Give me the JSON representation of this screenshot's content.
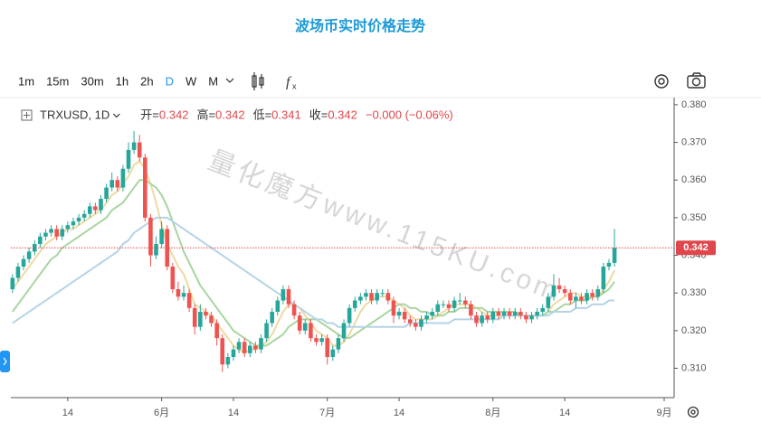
{
  "header": {
    "title": "波场币实时价格走势"
  },
  "toolbar": {
    "intervals": [
      "1m",
      "15m",
      "30m",
      "1h",
      "2h",
      "D",
      "W",
      "M"
    ]
  },
  "legend": {
    "symbol": "TRXUSD, 1D",
    "fields": [
      {
        "label": "开=",
        "value": 0.342
      },
      {
        "label": "高=",
        "value": 0.342
      },
      {
        "label": "低=",
        "value": 0.341
      },
      {
        "label": "收=",
        "value": 0.342
      }
    ],
    "change": "−0.000 (−0.06%)"
  },
  "watermark": "量化魔方www.115KU.com",
  "chart_data": {
    "type": "candlestick",
    "up_color": "#26a69a",
    "down_color": "#ef5350",
    "last_price": 0.342,
    "last_price_color": "#e0474c",
    "xlim": [
      -0.3,
      119.8
    ],
    "xticks": [
      {
        "value": 10,
        "label": "14"
      },
      {
        "value": 27,
        "label": "6月"
      },
      {
        "value": 40,
        "label": "14"
      },
      {
        "value": 57,
        "label": "7月"
      },
      {
        "value": 70,
        "label": "14"
      },
      {
        "value": 87,
        "label": "8月"
      },
      {
        "value": 100,
        "label": "14"
      },
      {
        "value": 118,
        "label": "9月"
      }
    ],
    "ylim": [
      0.3022,
      0.3819
    ],
    "yticks": [
      {
        "value": 0.31,
        "label": "0.310"
      },
      {
        "value": 0.32,
        "label": "0.320"
      },
      {
        "value": 0.33,
        "label": "0.330"
      },
      {
        "value": 0.34,
        "label": "0.340"
      },
      {
        "value": 0.35,
        "label": "0.350"
      },
      {
        "value": 0.36,
        "label": "0.360"
      },
      {
        "value": 0.37,
        "label": "0.370"
      },
      {
        "value": 0.38,
        "label": "0.380"
      }
    ],
    "candles": [
      [
        0.331,
        0.335,
        0.33,
        0.334
      ],
      [
        0.334,
        0.338,
        0.333,
        0.337
      ],
      [
        0.337,
        0.34,
        0.336,
        0.339
      ],
      [
        0.339,
        0.342,
        0.338,
        0.341
      ],
      [
        0.341,
        0.344,
        0.34,
        0.343
      ],
      [
        0.343,
        0.346,
        0.342,
        0.345
      ],
      [
        0.345,
        0.347,
        0.344,
        0.346
      ],
      [
        0.346,
        0.348,
        0.345,
        0.347
      ],
      [
        0.347,
        0.348,
        0.344,
        0.345
      ],
      [
        0.345,
        0.348,
        0.344,
        0.347
      ],
      [
        0.347,
        0.349,
        0.346,
        0.348
      ],
      [
        0.348,
        0.35,
        0.347,
        0.349
      ],
      [
        0.349,
        0.351,
        0.348,
        0.35
      ],
      [
        0.35,
        0.352,
        0.349,
        0.351
      ],
      [
        0.351,
        0.354,
        0.35,
        0.353
      ],
      [
        0.353,
        0.354,
        0.351,
        0.352
      ],
      [
        0.352,
        0.356,
        0.351,
        0.355
      ],
      [
        0.355,
        0.359,
        0.354,
        0.358
      ],
      [
        0.358,
        0.362,
        0.357,
        0.36
      ],
      [
        0.36,
        0.361,
        0.357,
        0.358
      ],
      [
        0.358,
        0.364,
        0.357,
        0.363
      ],
      [
        0.363,
        0.37,
        0.362,
        0.368
      ],
      [
        0.368,
        0.373,
        0.367,
        0.37
      ],
      [
        0.37,
        0.372,
        0.365,
        0.366
      ],
      [
        0.366,
        0.367,
        0.349,
        0.35
      ],
      [
        0.35,
        0.351,
        0.337,
        0.34
      ],
      [
        0.34,
        0.345,
        0.339,
        0.343
      ],
      [
        0.343,
        0.349,
        0.342,
        0.347
      ],
      [
        0.347,
        0.348,
        0.336,
        0.337
      ],
      [
        0.337,
        0.338,
        0.33,
        0.331
      ],
      [
        0.331,
        0.333,
        0.328,
        0.329
      ],
      [
        0.329,
        0.332,
        0.328,
        0.33
      ],
      [
        0.33,
        0.331,
        0.325,
        0.326
      ],
      [
        0.326,
        0.327,
        0.319,
        0.321
      ],
      [
        0.321,
        0.327,
        0.32,
        0.325
      ],
      [
        0.325,
        0.326,
        0.323,
        0.324
      ],
      [
        0.324,
        0.325,
        0.321,
        0.322
      ],
      [
        0.322,
        0.323,
        0.316,
        0.318
      ],
      [
        0.318,
        0.319,
        0.309,
        0.311
      ],
      [
        0.311,
        0.314,
        0.31,
        0.313
      ],
      [
        0.313,
        0.316,
        0.312,
        0.315
      ],
      [
        0.315,
        0.318,
        0.314,
        0.317
      ],
      [
        0.317,
        0.318,
        0.313,
        0.314
      ],
      [
        0.314,
        0.317,
        0.313,
        0.316
      ],
      [
        0.316,
        0.317,
        0.314,
        0.315
      ],
      [
        0.315,
        0.319,
        0.314,
        0.318
      ],
      [
        0.318,
        0.323,
        0.317,
        0.322
      ],
      [
        0.322,
        0.326,
        0.321,
        0.325
      ],
      [
        0.325,
        0.329,
        0.324,
        0.328
      ],
      [
        0.328,
        0.332,
        0.327,
        0.331
      ],
      [
        0.331,
        0.332,
        0.326,
        0.327
      ],
      [
        0.327,
        0.328,
        0.323,
        0.324
      ],
      [
        0.324,
        0.325,
        0.319,
        0.32
      ],
      [
        0.32,
        0.323,
        0.319,
        0.322
      ],
      [
        0.322,
        0.323,
        0.317,
        0.318
      ],
      [
        0.318,
        0.319,
        0.316,
        0.317
      ],
      [
        0.317,
        0.319,
        0.316,
        0.318
      ],
      [
        0.318,
        0.319,
        0.311,
        0.313
      ],
      [
        0.313,
        0.316,
        0.312,
        0.315
      ],
      [
        0.315,
        0.319,
        0.314,
        0.318
      ],
      [
        0.318,
        0.323,
        0.317,
        0.322
      ],
      [
        0.322,
        0.327,
        0.321,
        0.326
      ],
      [
        0.326,
        0.329,
        0.325,
        0.328
      ],
      [
        0.328,
        0.33,
        0.327,
        0.329
      ],
      [
        0.329,
        0.331,
        0.328,
        0.33
      ],
      [
        0.33,
        0.331,
        0.327,
        0.328
      ],
      [
        0.328,
        0.331,
        0.327,
        0.33
      ],
      [
        0.33,
        0.331,
        0.329,
        0.33
      ],
      [
        0.33,
        0.331,
        0.327,
        0.328
      ],
      [
        0.328,
        0.329,
        0.322,
        0.324
      ],
      [
        0.324,
        0.326,
        0.323,
        0.325
      ],
      [
        0.325,
        0.326,
        0.322,
        0.323
      ],
      [
        0.323,
        0.324,
        0.321,
        0.322
      ],
      [
        0.322,
        0.323,
        0.32,
        0.321
      ],
      [
        0.321,
        0.324,
        0.32,
        0.323
      ],
      [
        0.323,
        0.325,
        0.322,
        0.324
      ],
      [
        0.324,
        0.326,
        0.323,
        0.325
      ],
      [
        0.325,
        0.328,
        0.324,
        0.327
      ],
      [
        0.327,
        0.328,
        0.326,
        0.327
      ],
      [
        0.327,
        0.328,
        0.325,
        0.326
      ],
      [
        0.326,
        0.329,
        0.325,
        0.328
      ],
      [
        0.328,
        0.33,
        0.327,
        0.328
      ],
      [
        0.328,
        0.329,
        0.326,
        0.327
      ],
      [
        0.327,
        0.328,
        0.323,
        0.324
      ],
      [
        0.324,
        0.325,
        0.321,
        0.322
      ],
      [
        0.322,
        0.325,
        0.321,
        0.324
      ],
      [
        0.324,
        0.325,
        0.322,
        0.323
      ],
      [
        0.323,
        0.326,
        0.322,
        0.325
      ],
      [
        0.325,
        0.326,
        0.323,
        0.324
      ],
      [
        0.324,
        0.326,
        0.323,
        0.325
      ],
      [
        0.325,
        0.326,
        0.323,
        0.324
      ],
      [
        0.324,
        0.326,
        0.323,
        0.325
      ],
      [
        0.325,
        0.326,
        0.323,
        0.324
      ],
      [
        0.324,
        0.325,
        0.322,
        0.323
      ],
      [
        0.323,
        0.325,
        0.322,
        0.324
      ],
      [
        0.324,
        0.326,
        0.323,
        0.325
      ],
      [
        0.325,
        0.327,
        0.324,
        0.326
      ],
      [
        0.326,
        0.33,
        0.325,
        0.329
      ],
      [
        0.329,
        0.335,
        0.328,
        0.332
      ],
      [
        0.332,
        0.334,
        0.33,
        0.331
      ],
      [
        0.331,
        0.332,
        0.329,
        0.33
      ],
      [
        0.33,
        0.331,
        0.327,
        0.328
      ],
      [
        0.328,
        0.33,
        0.326,
        0.329
      ],
      [
        0.329,
        0.33,
        0.327,
        0.328
      ],
      [
        0.328,
        0.331,
        0.327,
        0.33
      ],
      [
        0.33,
        0.331,
        0.328,
        0.329
      ],
      [
        0.329,
        0.332,
        0.328,
        0.331
      ],
      [
        0.331,
        0.338,
        0.33,
        0.337
      ],
      [
        0.337,
        0.339,
        0.336,
        0.338
      ],
      [
        0.338,
        0.347,
        0.337,
        0.342
      ]
    ],
    "series": [
      {
        "color": "#f0d9a0",
        "values": [
          0.331,
          0.333,
          0.335,
          0.337,
          0.339,
          0.341,
          0.343,
          0.344,
          0.345,
          0.346,
          0.347,
          0.347,
          0.348,
          0.349,
          0.35,
          0.351,
          0.352,
          0.354,
          0.356,
          0.357,
          0.359,
          0.361,
          0.364,
          0.365,
          0.363,
          0.359,
          0.354,
          0.348,
          0.343,
          0.34,
          0.337,
          0.335,
          0.331,
          0.327,
          0.326,
          0.325,
          0.324,
          0.322,
          0.32,
          0.318,
          0.316,
          0.315,
          0.314,
          0.315,
          0.315,
          0.316,
          0.317,
          0.319,
          0.322,
          0.325,
          0.327,
          0.327,
          0.326,
          0.324,
          0.322,
          0.32,
          0.319,
          0.318,
          0.316,
          0.316,
          0.317,
          0.319,
          0.322,
          0.325,
          0.327,
          0.328,
          0.329,
          0.329,
          0.329,
          0.328,
          0.327,
          0.326,
          0.324,
          0.323,
          0.323,
          0.323,
          0.323,
          0.324,
          0.325,
          0.326,
          0.327,
          0.327,
          0.327,
          0.327,
          0.326,
          0.325,
          0.324,
          0.324,
          0.324,
          0.324,
          0.324,
          0.324,
          0.324,
          0.324,
          0.324,
          0.324,
          0.324,
          0.325,
          0.327,
          0.328,
          0.329,
          0.33,
          0.33,
          0.329,
          0.329,
          0.329,
          0.329,
          0.331,
          0.333,
          0.336
        ]
      },
      {
        "color": "#a8d5a0",
        "values": [
          0.325,
          0.327,
          0.329,
          0.331,
          0.333,
          0.335,
          0.337,
          0.339,
          0.34,
          0.342,
          0.343,
          0.344,
          0.345,
          0.346,
          0.347,
          0.348,
          0.349,
          0.35,
          0.352,
          0.353,
          0.354,
          0.356,
          0.358,
          0.36,
          0.36,
          0.359,
          0.358,
          0.356,
          0.353,
          0.349,
          0.345,
          0.341,
          0.338,
          0.335,
          0.332,
          0.33,
          0.328,
          0.326,
          0.324,
          0.322,
          0.32,
          0.319,
          0.318,
          0.317,
          0.316,
          0.316,
          0.316,
          0.317,
          0.318,
          0.319,
          0.321,
          0.322,
          0.323,
          0.323,
          0.323,
          0.323,
          0.322,
          0.321,
          0.32,
          0.319,
          0.318,
          0.318,
          0.319,
          0.32,
          0.321,
          0.322,
          0.323,
          0.324,
          0.325,
          0.326,
          0.327,
          0.327,
          0.326,
          0.326,
          0.325,
          0.325,
          0.324,
          0.324,
          0.324,
          0.325,
          0.325,
          0.326,
          0.326,
          0.326,
          0.326,
          0.326,
          0.325,
          0.325,
          0.325,
          0.325,
          0.325,
          0.325,
          0.324,
          0.324,
          0.324,
          0.324,
          0.324,
          0.325,
          0.325,
          0.326,
          0.327,
          0.327,
          0.328,
          0.328,
          0.328,
          0.329,
          0.329,
          0.33,
          0.331,
          0.333
        ]
      },
      {
        "color": "#b5d3e6",
        "values": [
          0.322,
          0.323,
          0.324,
          0.325,
          0.326,
          0.327,
          0.328,
          0.329,
          0.33,
          0.331,
          0.332,
          0.333,
          0.334,
          0.335,
          0.336,
          0.337,
          0.338,
          0.339,
          0.34,
          0.341,
          0.343,
          0.344,
          0.346,
          0.347,
          0.348,
          0.349,
          0.35,
          0.35,
          0.35,
          0.349,
          0.348,
          0.347,
          0.346,
          0.345,
          0.344,
          0.343,
          0.342,
          0.341,
          0.34,
          0.339,
          0.338,
          0.337,
          0.336,
          0.335,
          0.334,
          0.333,
          0.332,
          0.331,
          0.33,
          0.329,
          0.328,
          0.327,
          0.326,
          0.325,
          0.324,
          0.323,
          0.323,
          0.322,
          0.322,
          0.321,
          0.321,
          0.321,
          0.321,
          0.321,
          0.321,
          0.321,
          0.321,
          0.321,
          0.321,
          0.321,
          0.321,
          0.321,
          0.322,
          0.322,
          0.322,
          0.322,
          0.322,
          0.322,
          0.322,
          0.322,
          0.323,
          0.323,
          0.323,
          0.323,
          0.323,
          0.323,
          0.323,
          0.323,
          0.323,
          0.324,
          0.324,
          0.324,
          0.324,
          0.324,
          0.324,
          0.324,
          0.324,
          0.324,
          0.325,
          0.325,
          0.325,
          0.325,
          0.326,
          0.326,
          0.326,
          0.327,
          0.327,
          0.327,
          0.328,
          0.328
        ]
      }
    ]
  }
}
